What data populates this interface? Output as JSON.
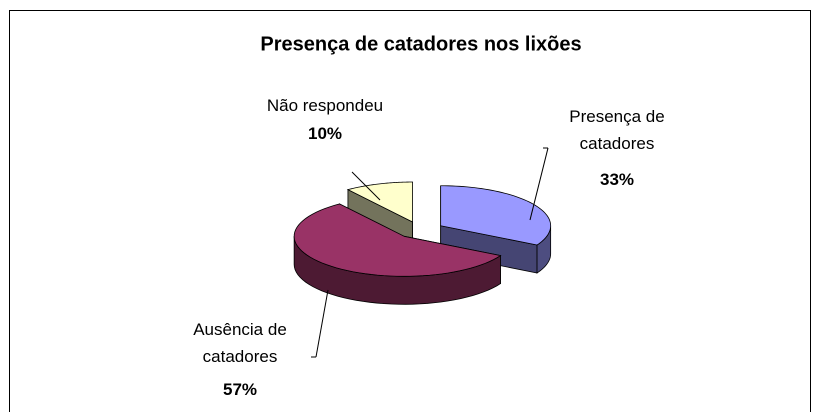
{
  "chart_data": {
    "type": "pie",
    "title": "Presença de catadores nos lixões",
    "categories": [
      "Presença de catadores",
      "Ausência de catadores",
      "Não respondeu"
    ],
    "values": [
      33,
      57,
      10
    ],
    "value_labels": [
      "33%",
      "57%",
      "10%"
    ],
    "colors": [
      "#9999ff",
      "#993366",
      "#ffffcc"
    ]
  }
}
